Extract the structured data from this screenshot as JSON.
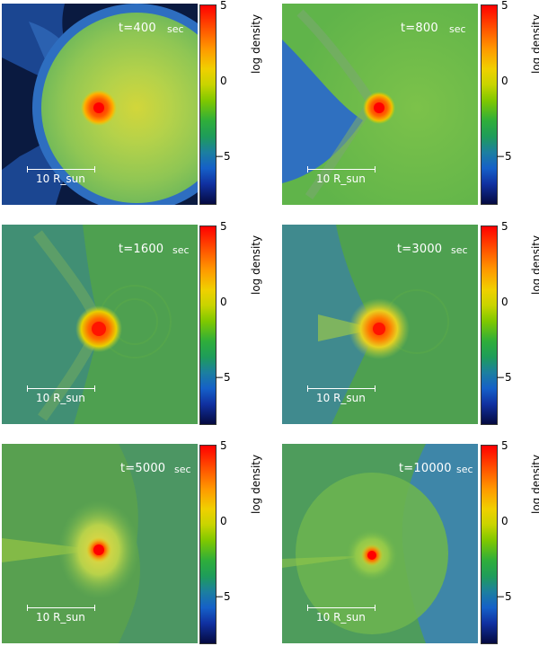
{
  "panels": [
    {
      "time": "t=400",
      "unit": "sec",
      "scale": "10 R_sun"
    },
    {
      "time": "t=800",
      "unit": "sec",
      "scale": "10 R_sun"
    },
    {
      "time": "t=1600",
      "unit": "sec",
      "scale": "10 R_sun"
    },
    {
      "time": "t=3000",
      "unit": "sec",
      "scale": "10 R_sun"
    },
    {
      "time": "t=5000",
      "unit": "sec",
      "scale": "10 R_sun"
    },
    {
      "time": "t=10000",
      "unit": "sec",
      "scale": "10 R_sun"
    }
  ],
  "colorbar": {
    "title": "log density",
    "ticks": [
      "5",
      "0",
      "−5"
    ]
  }
}
